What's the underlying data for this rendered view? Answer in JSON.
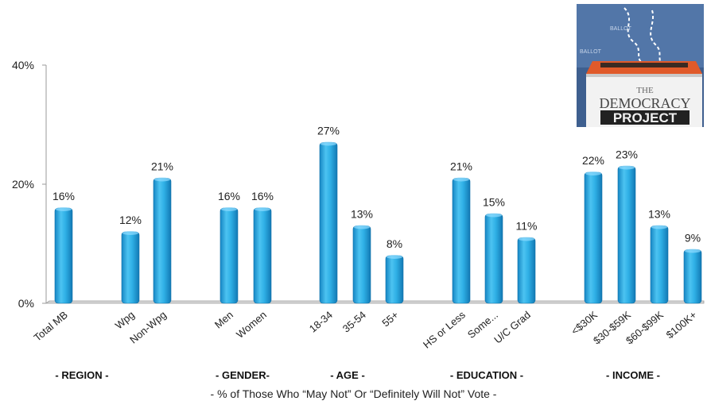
{
  "chart_data": {
    "type": "bar",
    "categories": [
      "Total MB",
      "Wpg",
      "Non-Wpg",
      "Men",
      "Women",
      "18-34",
      "35-54",
      "55+",
      "HS or Less",
      "Some...",
      "U/C Grad",
      "<$30K",
      "$30-$59K",
      "$60-$99K",
      "$100K+"
    ],
    "values": [
      16,
      12,
      21,
      16,
      16,
      27,
      13,
      8,
      21,
      15,
      11,
      22,
      23,
      13,
      9
    ],
    "value_labels": [
      "16%",
      "12%",
      "21%",
      "16%",
      "16%",
      "27%",
      "13%",
      "8%",
      "21%",
      "15%",
      "11%",
      "22%",
      "23%",
      "13%",
      "9%"
    ],
    "groups": [
      {
        "label": "- REGION -",
        "categories": [
          "Total MB",
          "Wpg",
          "Non-Wpg"
        ]
      },
      {
        "label": "- GENDER-",
        "categories": [
          "Men",
          "Women"
        ]
      },
      {
        "label": "- AGE -",
        "categories": [
          "18-34",
          "35-54",
          "55+"
        ]
      },
      {
        "label": "- EDUCATION -",
        "categories": [
          "HS or Less",
          "Some...",
          "U/C Grad"
        ]
      },
      {
        "label": "- INCOME -",
        "categories": [
          "<$30K",
          "$30-$59K",
          "$60-$99K",
          "$100K+"
        ]
      }
    ],
    "yticks": [
      "0%",
      "20%",
      "40%"
    ],
    "ytick_values": [
      0,
      20,
      40
    ],
    "ylim": [
      0,
      40
    ],
    "grid": false,
    "title": "",
    "xlabel": "- % of Those Who “May Not” Or “Definitely Will Not” Vote -",
    "ylabel": "",
    "bar_color": "#29ABE2"
  },
  "logo": {
    "line1": "THE",
    "line2": "DEMOCRACY",
    "line3": "PROJECT",
    "ballot_text": "BALLOT"
  }
}
